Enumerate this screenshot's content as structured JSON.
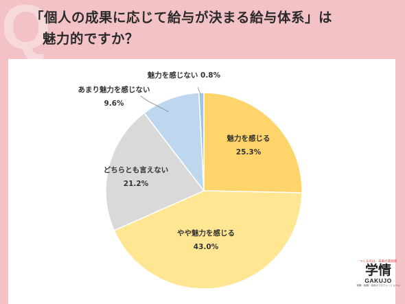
{
  "header": {
    "q_mark": "Q",
    "title_line1": "「個人の成果に応じて給与が決まる給与体系」は",
    "title_line2": "魅力的ですか？"
  },
  "chart_data": {
    "type": "pie",
    "title": "「個人の成果に応じて給与が決まる給与体系」は魅力的ですか？",
    "slices": [
      {
        "label": "魅力を感じる",
        "value": 25.3,
        "display": "25.3%",
        "color": "#ffd46b"
      },
      {
        "label": "やや魅力を感じる",
        "value": 43.0,
        "display": "43.0%",
        "color": "#fee693"
      },
      {
        "label": "どちらとも言えない",
        "value": 21.2,
        "display": "21.2%",
        "color": "#d9d9d9"
      },
      {
        "label": "あまり魅力を感じない",
        "value": 9.6,
        "display": "9.6%",
        "color": "#bdd7ee"
      },
      {
        "label": "魅力を感じない",
        "value": 0.8,
        "display": "0.8%",
        "color": "#9dc3e6"
      }
    ]
  },
  "logo": {
    "tagline": "つくるのは、未来の選択肢",
    "main": "学情",
    "en": "GAKUJO",
    "sub": "就職・転職・採用のプロフェッショナル"
  }
}
